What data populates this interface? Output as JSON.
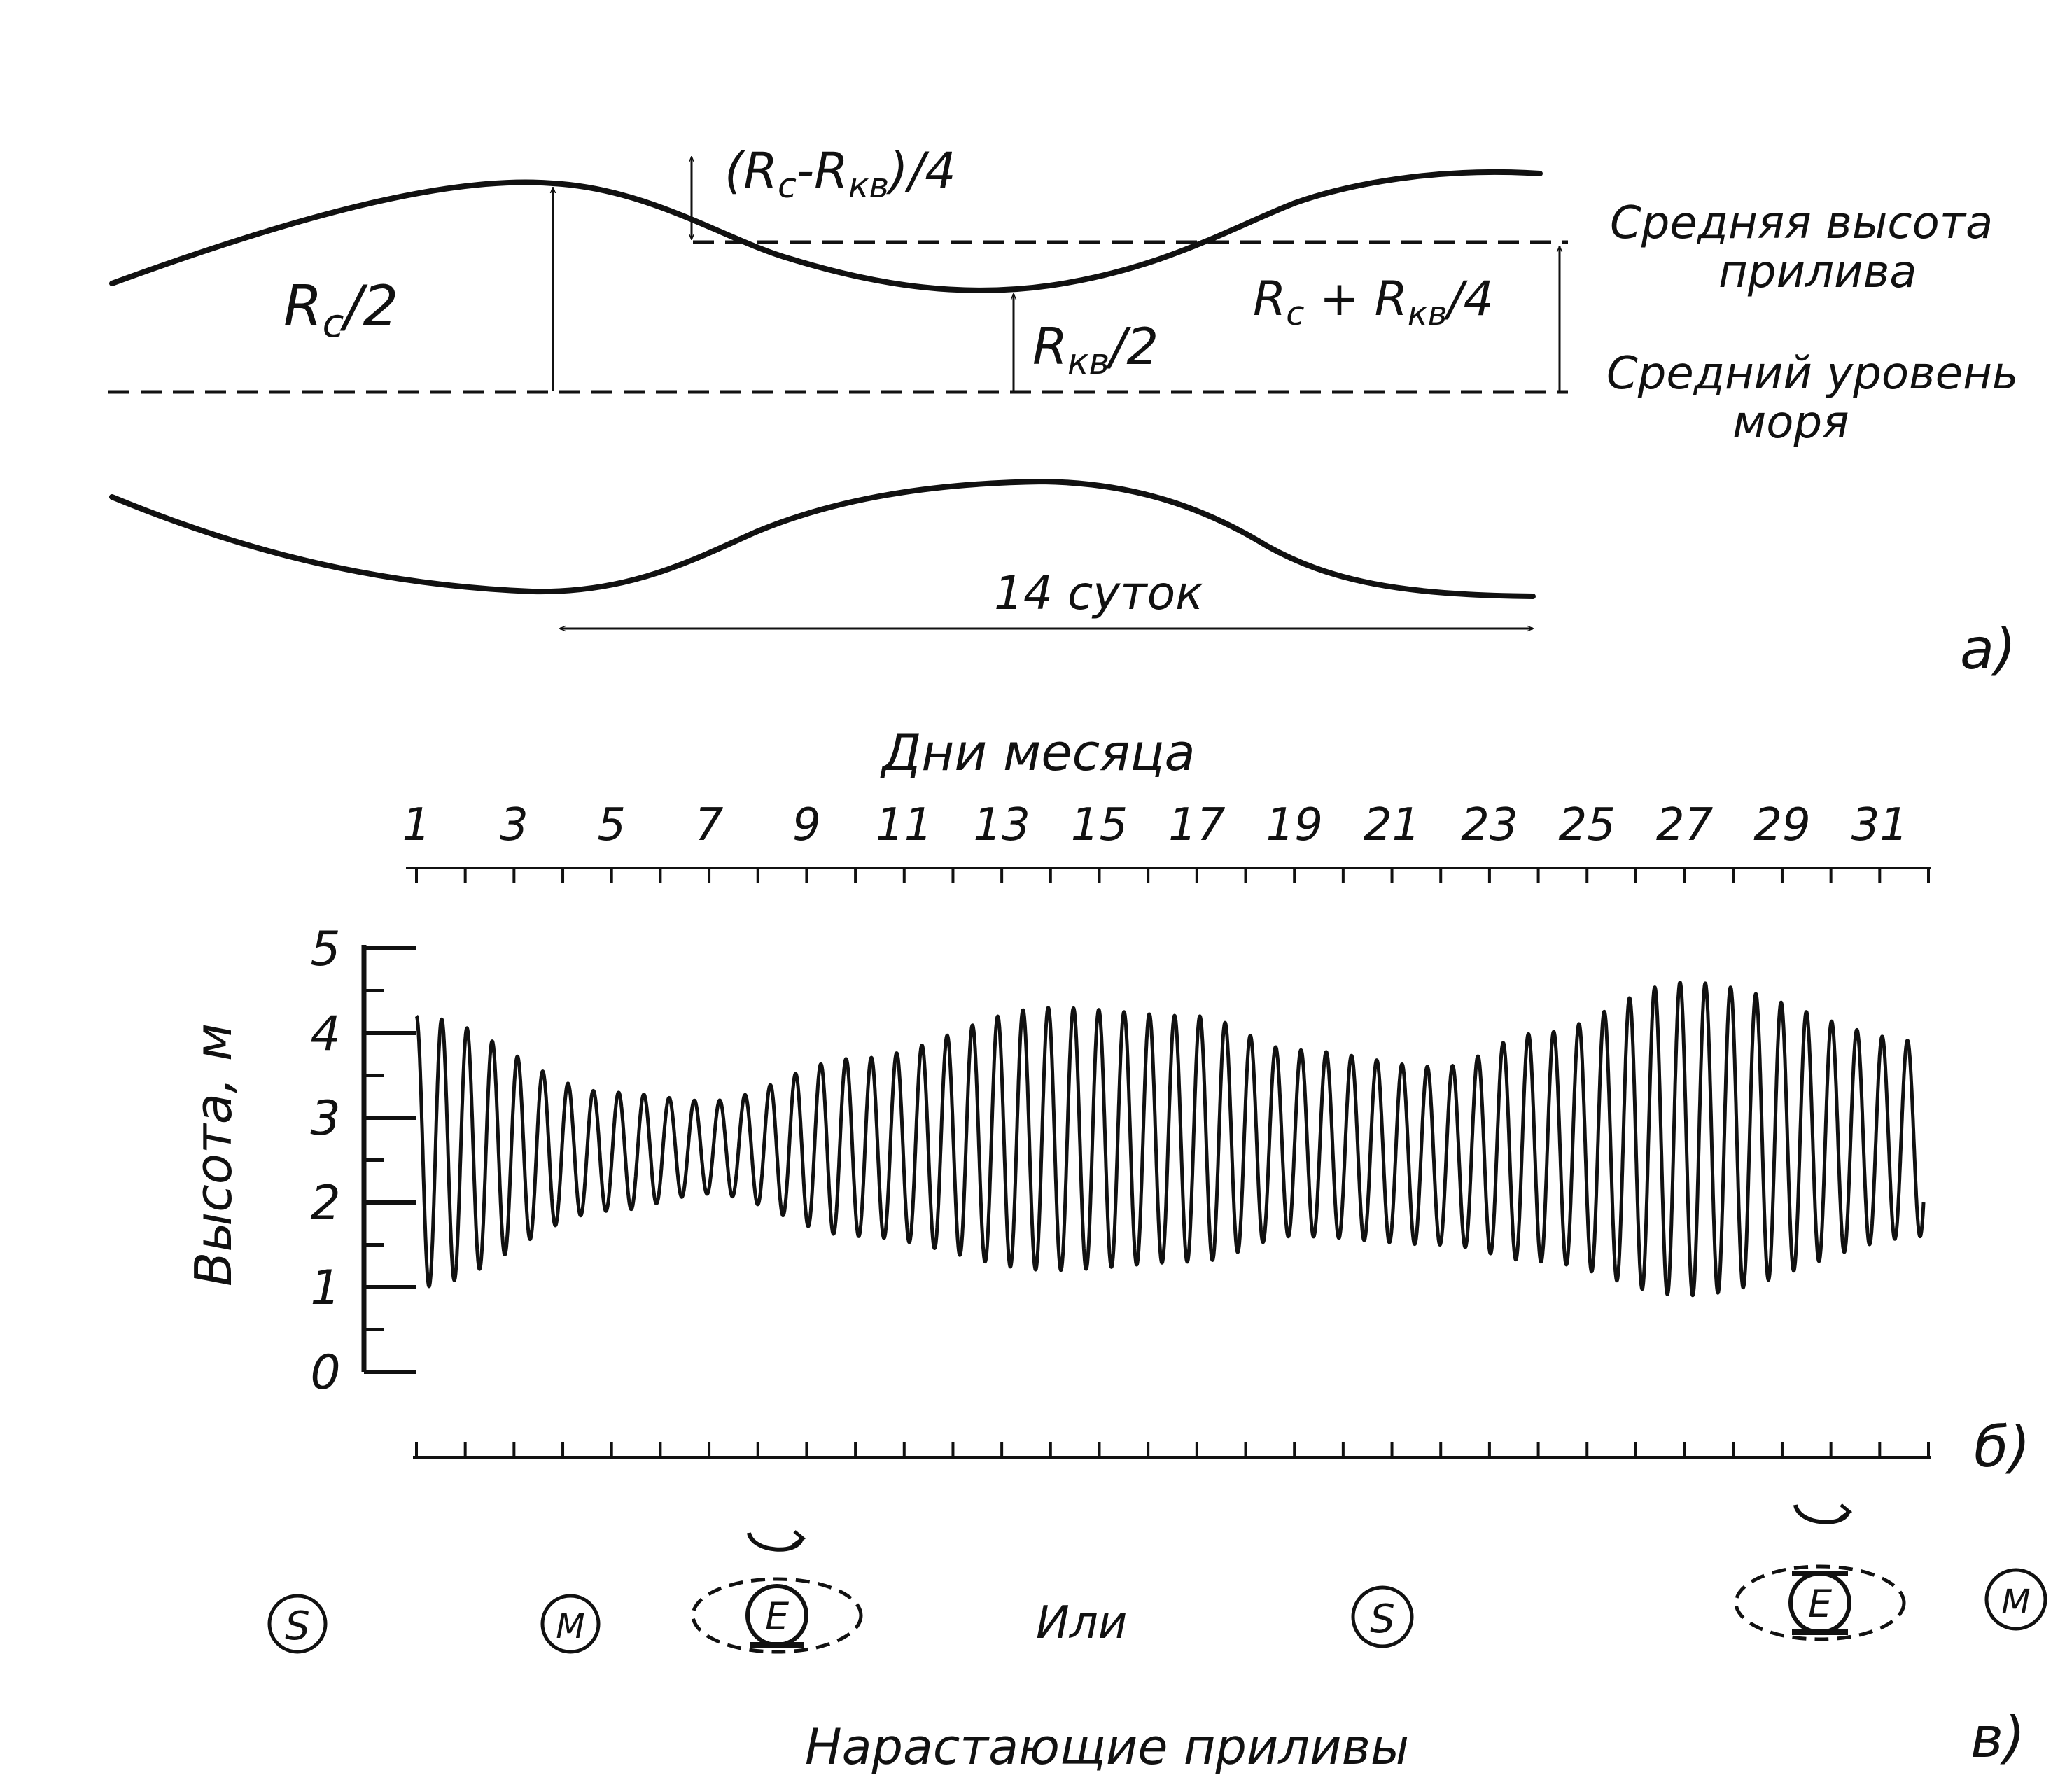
{
  "panel_a": {
    "label_half_range_diff": "(R",
    "label_half_range_diff_s1": "c",
    "label_half_range_diff_mid": "-R",
    "label_half_range_diff_s2": "кв",
    "label_half_range_diff_end": ")/4",
    "label_rc": "R",
    "label_rc_sub": "c",
    "label_rc_end": "/2",
    "label_rkv": "R",
    "label_rkv_sub": "кв",
    "label_rkv_end": "/2",
    "label_sum": "R",
    "label_sum_s1": "c",
    "label_sum_mid": " + R",
    "label_sum_s2": "кв",
    "label_sum_end": "/4",
    "mean_tide_height_1": "Средняя высота",
    "mean_tide_height_2": "прилива",
    "mean_sea_level_1": "Средний уровень",
    "mean_sea_level_2": "моря",
    "period_label": "14 суток",
    "panel_letter": "а)"
  },
  "panel_b": {
    "top_axis_title": "Дни месяца",
    "day_labels": [
      "1",
      "3",
      "5",
      "7",
      "9",
      "11",
      "13",
      "15",
      "17",
      "19",
      "21",
      "23",
      "25",
      "27",
      "29",
      "31"
    ],
    "y_axis_title": "Высота, м",
    "y_ticks": [
      "0",
      "1",
      "2",
      "3",
      "4",
      "5"
    ],
    "panel_letter": "б)"
  },
  "chart_data": {
    "type": "line",
    "x_label": "Дни месяца",
    "y_label": "Высота, м",
    "ylim": [
      0,
      5
    ],
    "xlim": [
      1,
      32
    ],
    "cycles_per_day": 1.93,
    "envelope": {
      "days": [
        1,
        5,
        7,
        10,
        14,
        17,
        19,
        22,
        24,
        27,
        32
      ],
      "high": [
        4.2,
        3.3,
        3.2,
        3.7,
        4.3,
        4.2,
        3.8,
        3.6,
        4.0,
        4.6,
        3.9
      ],
      "low": [
        1.0,
        1.9,
        2.1,
        1.6,
        1.2,
        1.3,
        1.6,
        1.5,
        1.3,
        0.9,
        1.6
      ]
    }
  },
  "panel_c": {
    "sun_left": "S",
    "moon_left": "M",
    "earth_left": "E",
    "or_label": "Или",
    "sun_right": "S",
    "earth_right": "E",
    "moon_right": "M",
    "caption": "Нарастающие приливы",
    "panel_letter": "в)"
  }
}
